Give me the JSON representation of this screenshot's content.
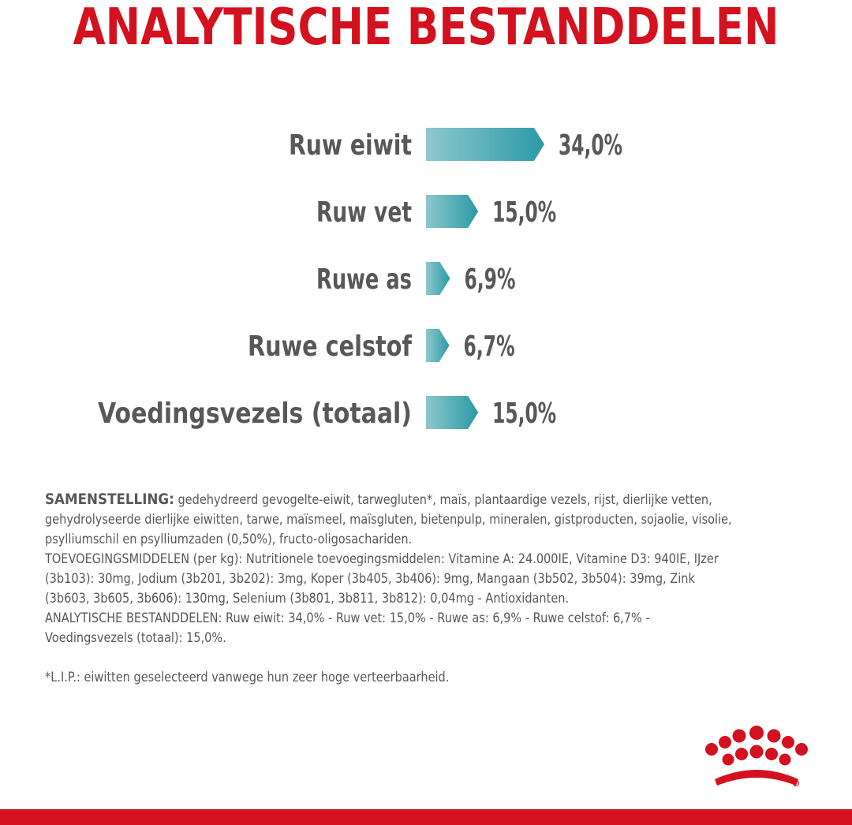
{
  "header": {
    "title": "ANALYTISCHE BESTANDDELEN"
  },
  "chart_data": {
    "type": "bar",
    "categories": [
      "Ruw eiwit",
      "Ruw vet",
      "Ruwe as",
      "Ruwe celstof",
      "Voedingsvezels (totaal)"
    ],
    "values": [
      34.0,
      15.0,
      6.9,
      6.7,
      15.0
    ],
    "value_labels": [
      "34,0%",
      "15,0%",
      "6,9%",
      "6,7%",
      "15,0%"
    ],
    "xlim": [
      0,
      34
    ],
    "colors": {
      "bar_start": "#8fc7cd",
      "bar_end": "#2a9aa6",
      "text": "#58585a"
    }
  },
  "composition": {
    "heading": "SAMENSTELLING:",
    "ingredients": " gedehydreerd gevogelte-eiwit, tarwegluten*, maïs, plantaardige vezels, rijst, dierlijke vetten, gehydrolyseerde dierlijke eiwitten, tarwe, maïsmeel, maïsgluten, bietenpulp, mineralen, gistproducten, sojaolie, visolie, psylliumschil en psylliumzaden (0,50%), fructo-oligosachariden.",
    "additives": "TOEVOEGINGSMIDDELEN (per kg): Nutritionele toevoegingsmiddelen: Vitamine A: 24.000IE, Vitamine D3: 940IE, IJzer (3b103): 30mg, Jodium (3b201, 3b202): 3mg, Koper (3b405, 3b406): 9mg, Mangaan (3b502, 3b504): 39mg, Zink (3b603, 3b605, 3b606): 130mg, Selenium (3b801, 3b811, 3b812): 0,04mg - Antioxidanten.",
    "analytical": "ANALYTISCHE BESTANDDELEN: Ruw eiwit: 34,0% - Ruw vet: 15,0% - Ruwe as: 6,9% - Ruwe celstof: 6,7% - Voedingsvezels (totaal): 15,0%.",
    "footnote": "*L.I.P.: eiwitten geselecteerd vanwege hun zeer hoge verteerbaarheid."
  },
  "brand": {
    "logo_icon": "crown-icon",
    "accent": "#d4111f"
  }
}
